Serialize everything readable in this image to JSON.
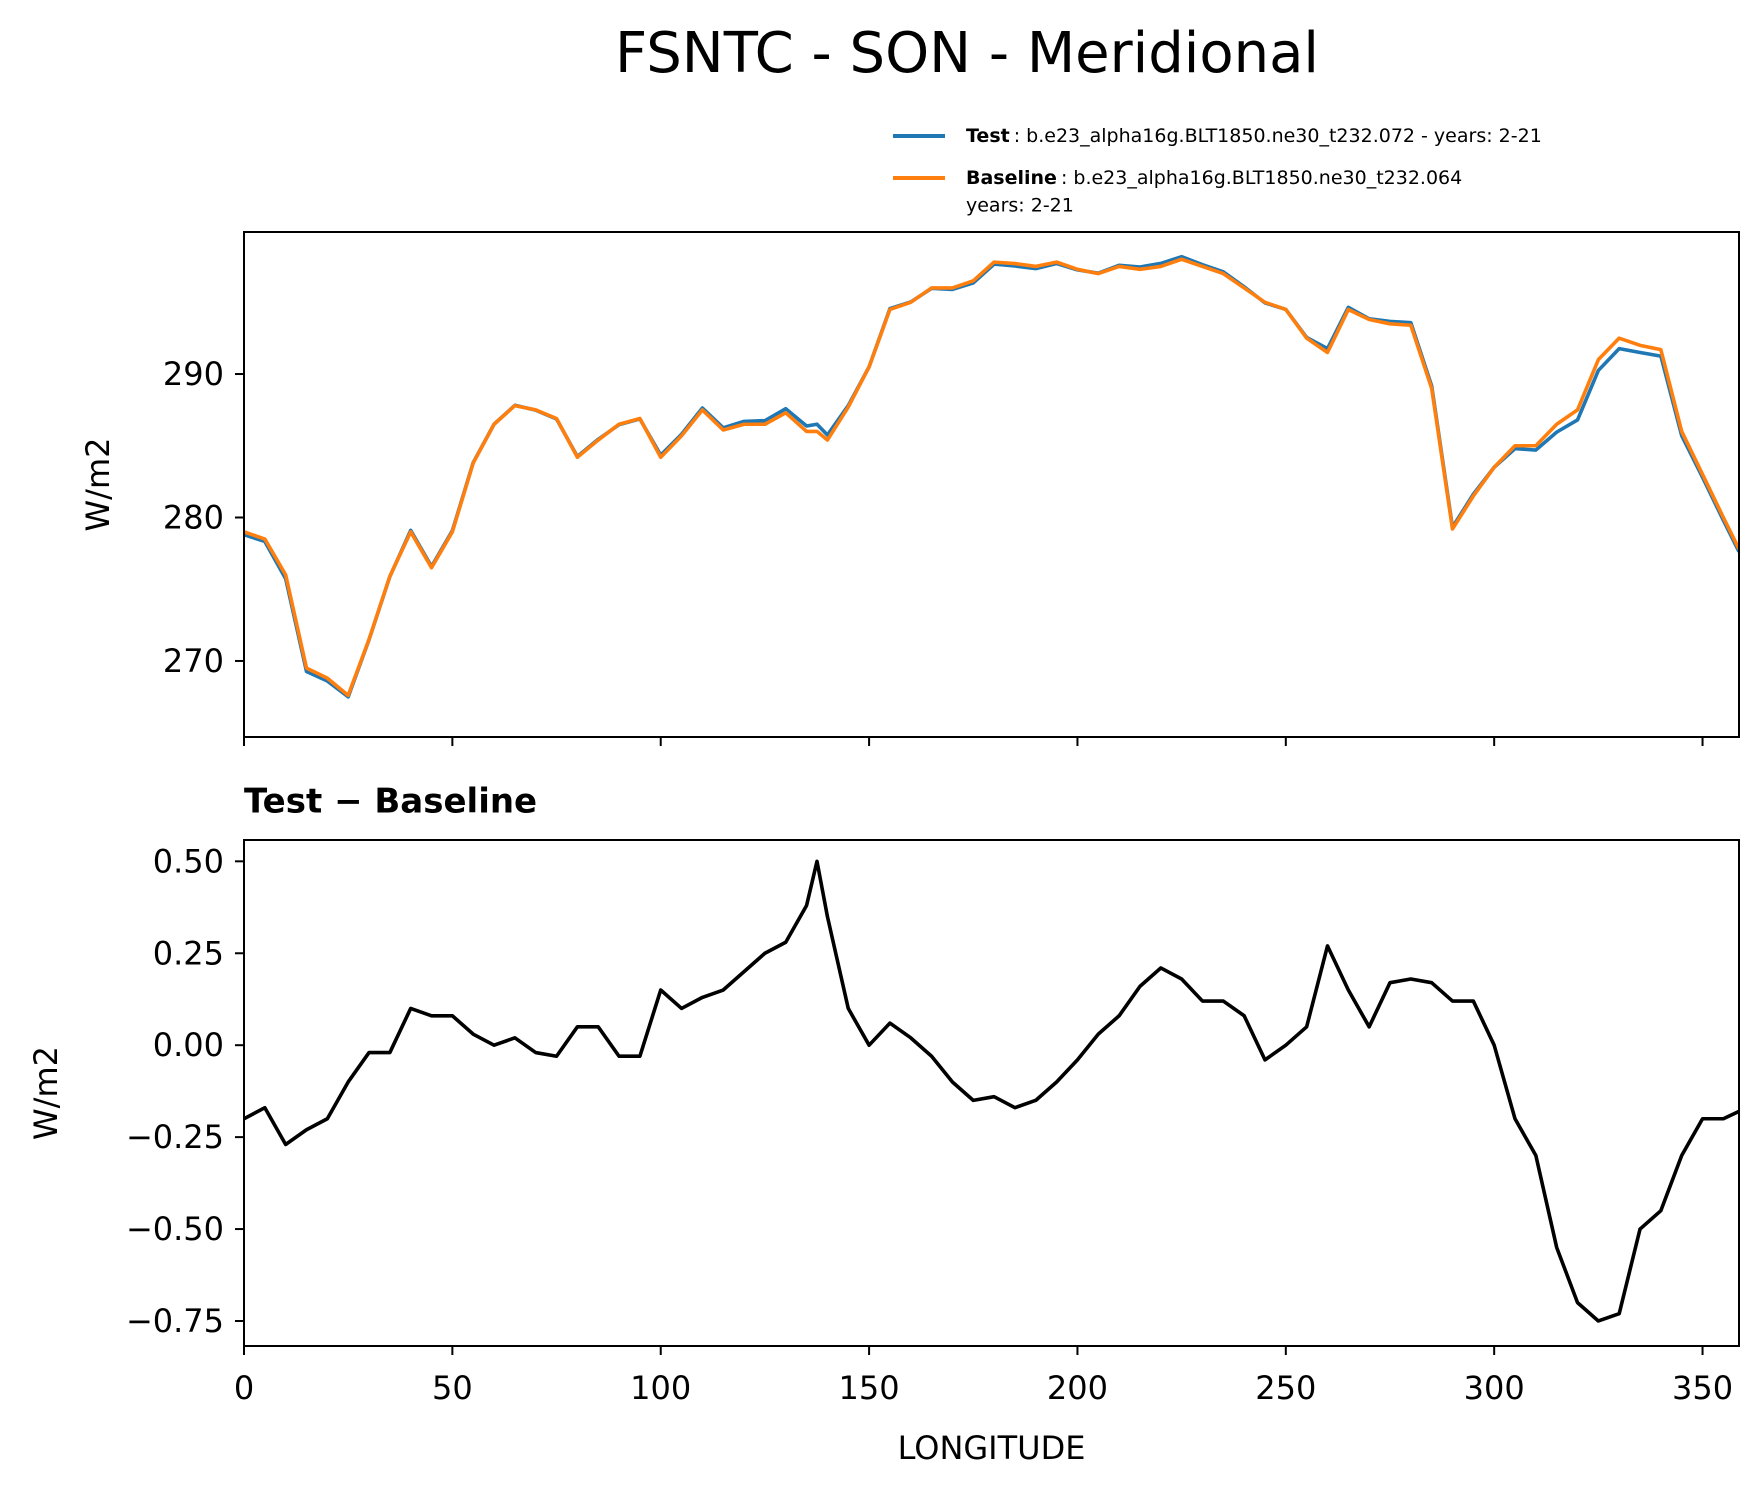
{
  "title": "FSNTC - SON - Meridional",
  "chart_data": [
    {
      "type": "line",
      "x": [
        0,
        5,
        10,
        15,
        20,
        25,
        30,
        35,
        40,
        45,
        50,
        55,
        60,
        65,
        70,
        75,
        80,
        85,
        90,
        95,
        100,
        105,
        110,
        115,
        120,
        125,
        130,
        135,
        137.5,
        140,
        145,
        150,
        155,
        160,
        165,
        170,
        175,
        180,
        185,
        190,
        195,
        200,
        205,
        210,
        215,
        220,
        225,
        230,
        235,
        240,
        245,
        250,
        255,
        260,
        265,
        270,
        275,
        280,
        285,
        290,
        295,
        300,
        305,
        310,
        315,
        320,
        325,
        330,
        335,
        340,
        345,
        350,
        355,
        358.75
      ],
      "series": [
        {
          "name": "Test",
          "description": [
            ": b.e23_alpha16g.BLT1850.ne30_t232.072 - years: 2-21"
          ],
          "color": "#1f77b4",
          "values": [
            278.8,
            278.33,
            275.73,
            269.27,
            268.6,
            267.5,
            271.48,
            275.88,
            279.1,
            276.58,
            279.08,
            283.83,
            286.5,
            287.82,
            287.48,
            286.87,
            284.25,
            285.45,
            286.47,
            286.87,
            284.35,
            285.8,
            287.63,
            286.25,
            286.7,
            286.75,
            287.58,
            286.38,
            286.5,
            285.75,
            287.8,
            290.5,
            294.56,
            295.02,
            295.97,
            295.9,
            296.35,
            297.66,
            297.53,
            297.35,
            297.7,
            297.26,
            297.03,
            297.58,
            297.46,
            297.71,
            298.18,
            297.62,
            297.12,
            296.08,
            294.96,
            294.5,
            292.55,
            291.77,
            294.65,
            293.85,
            293.67,
            293.58,
            289.17,
            279.32,
            281.62,
            283.5,
            284.8,
            284.7,
            285.95,
            286.8,
            290.25,
            291.77,
            291.5,
            291.25,
            285.7,
            282.8,
            279.8,
            277.62
          ]
        },
        {
          "name": "Baseline",
          "description": [
            ": b.e23_alpha16g.BLT1850.ne30_t232.064",
            "years: 2-21"
          ],
          "color": "#ff7f0e",
          "values": [
            279,
            278.5,
            276,
            269.5,
            268.8,
            267.6,
            271.5,
            275.9,
            279,
            276.5,
            279,
            283.8,
            286.5,
            287.8,
            287.5,
            286.9,
            284.2,
            285.4,
            286.5,
            286.9,
            284.2,
            285.7,
            287.5,
            286.1,
            286.5,
            286.5,
            287.3,
            286,
            286,
            285.4,
            287.7,
            290.5,
            294.5,
            295,
            296,
            296,
            296.5,
            297.8,
            297.7,
            297.5,
            297.8,
            297.3,
            297,
            297.5,
            297.3,
            297.5,
            298,
            297.5,
            297,
            296,
            295,
            294.5,
            292.5,
            291.5,
            294.5,
            293.8,
            293.5,
            293.4,
            289,
            279.2,
            281.5,
            283.5,
            285,
            285,
            286.5,
            287.5,
            291,
            292.5,
            292,
            291.7,
            286,
            283,
            280,
            277.8
          ]
        }
      ],
      "xlim": [
        0,
        358.75
      ],
      "xticks": [
        0,
        50,
        100,
        150,
        200,
        250,
        300,
        350
      ],
      "ylim": [
        264.7,
        299.9
      ],
      "yticks": [
        270,
        280,
        290
      ],
      "ylabel": "W/m2"
    },
    {
      "type": "line",
      "title": "Test − Baseline",
      "x": [
        0,
        5,
        10,
        15,
        20,
        25,
        30,
        35,
        40,
        45,
        50,
        55,
        60,
        65,
        70,
        75,
        80,
        85,
        90,
        95,
        100,
        105,
        110,
        115,
        120,
        125,
        130,
        135,
        137.5,
        140,
        145,
        150,
        155,
        160,
        165,
        170,
        175,
        180,
        185,
        190,
        195,
        200,
        205,
        210,
        215,
        220,
        225,
        230,
        235,
        240,
        245,
        250,
        255,
        260,
        265,
        270,
        275,
        280,
        285,
        290,
        295,
        300,
        305,
        310,
        315,
        320,
        325,
        330,
        335,
        340,
        345,
        350,
        355,
        358.75
      ],
      "series": [
        {
          "color": "#000000",
          "values": [
            -0.2,
            -0.17,
            -0.27,
            -0.23,
            -0.2,
            -0.1,
            -0.02,
            -0.02,
            0.1,
            0.08,
            0.08,
            0.03,
            0,
            0.02,
            -0.02,
            -0.03,
            0.05,
            0.05,
            -0.03,
            -0.03,
            0.15,
            0.1,
            0.13,
            0.15,
            0.2,
            0.25,
            0.28,
            0.38,
            0.5,
            0.35,
            0.1,
            0,
            0.06,
            0.02,
            -0.03,
            -0.1,
            -0.15,
            -0.14,
            -0.17,
            -0.15,
            -0.1,
            -0.04,
            0.03,
            0.08,
            0.16,
            0.21,
            0.18,
            0.12,
            0.12,
            0.08,
            -0.04,
            0,
            0.05,
            0.27,
            0.15,
            0.05,
            0.17,
            0.18,
            0.17,
            0.12,
            0.12,
            0,
            -0.2,
            -0.3,
            -0.55,
            -0.7,
            -0.75,
            -0.73,
            -0.5,
            -0.45,
            -0.3,
            -0.2,
            -0.2,
            -0.18
          ]
        }
      ],
      "xlim": [
        0,
        358.75
      ],
      "xticks": [
        0,
        50,
        100,
        150,
        200,
        250,
        300,
        350
      ],
      "ylim": [
        -0.818,
        0.558
      ],
      "yticks": [
        {
          "value": 0.5,
          "label": "0.50"
        },
        {
          "value": 0.25,
          "label": "0.25"
        },
        {
          "value": 0,
          "label": "0.00"
        },
        {
          "value": -0.25,
          "label": "−0.25"
        },
        {
          "value": -0.5,
          "label": "−0.50"
        },
        {
          "value": -0.75,
          "label": "−0.75"
        }
      ],
      "ylabel": "W/m2",
      "xlabel": "LONGITUDE"
    }
  ]
}
